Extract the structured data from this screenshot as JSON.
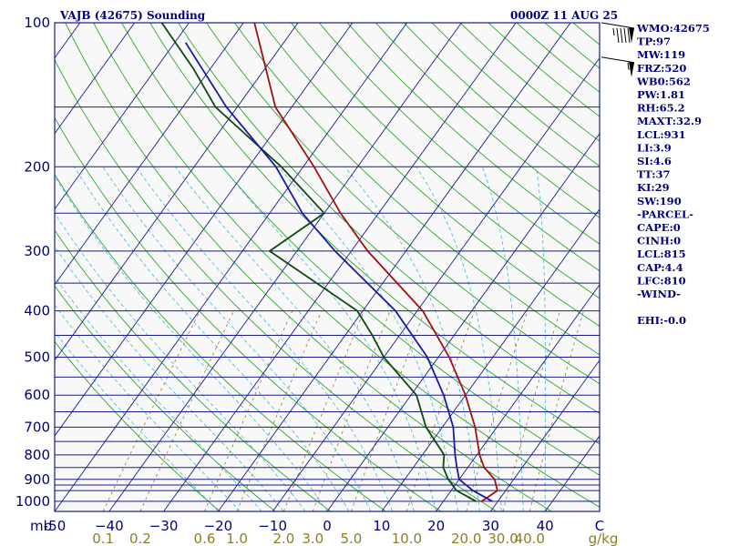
{
  "header": {
    "station": "VAJB (42675) Sounding",
    "time": "0000Z 11 AUG 25"
  },
  "colors": {
    "isobar": "#1a1a8c",
    "isotherm": "#1a1a8c",
    "dry_adiabat": "#2aa82a",
    "moist_adiabat": "#40b8d8",
    "mixing_ratio": "#8b7d2a",
    "temperature": "#a01010",
    "dewpoint": "#0d4a0d",
    "parcel": "#1a1aa8",
    "wind_barb": "#000000"
  },
  "indices": [
    "WMO:42675",
    "TP:97",
    "MW:119",
    "FRZ:520",
    "WB0:562",
    "PW:1.81",
    "RH:65.2",
    "MAXT:32.9",
    "LCL:931",
    "LI:3.9",
    "SI:4.6",
    "TT:37",
    "KI:29",
    "SW:190",
    "-PARCEL-",
    "CAPE:0",
    "CINH:0",
    "LCL:815",
    "CAP:4.4",
    "LFC:810",
    "-WIND-",
    "",
    "EHI:-0.0"
  ],
  "chart_data": {
    "type": "skew-t log-p sounding",
    "pressure_unit_label": "mb",
    "pressure_ticks": [
      100,
      200,
      300,
      400,
      500,
      600,
      700,
      800,
      900,
      1000
    ],
    "isobars": [
      100,
      150,
      200,
      250,
      300,
      350,
      400,
      450,
      500,
      550,
      600,
      650,
      700,
      750,
      800,
      850,
      900,
      925,
      950,
      1000
    ],
    "temperature_ticks": [
      -50,
      -40,
      -30,
      -20,
      -10,
      0,
      10,
      20,
      30,
      40
    ],
    "temperature_tick_labels": [
      "-50",
      "−40",
      "−30",
      "−20",
      "−10",
      "0",
      "10",
      "20",
      "30",
      "40"
    ],
    "temperature_axis_end_label": "C",
    "mixing_ratio_labels": [
      "0.1",
      "0.2",
      "0.6",
      "1.0",
      "2.0",
      "3.0",
      "5.0",
      "10.0",
      "20.0",
      "30.0",
      "40.0"
    ],
    "mixing_ratio_values": [
      0.1,
      0.2,
      0.6,
      1.0,
      2.0,
      3.0,
      5.0,
      10.0,
      20.0,
      30.0,
      40.0
    ],
    "mixing_ratio_unit": "g/kg",
    "pressure_range": [
      1050,
      100
    ],
    "temperature_range_at_base": [
      -50,
      50
    ],
    "series": [
      {
        "key": "temperature",
        "points": [
          [
            1000,
            27
          ],
          [
            950,
            28.5
          ],
          [
            900,
            26.5
          ],
          [
            850,
            23
          ],
          [
            800,
            20.5
          ],
          [
            700,
            16
          ],
          [
            600,
            10
          ],
          [
            500,
            2
          ],
          [
            400,
            -9
          ],
          [
            300,
            -27
          ],
          [
            250,
            -37
          ],
          [
            200,
            -48
          ],
          [
            150,
            -63
          ],
          [
            100,
            -78
          ]
        ]
      },
      {
        "key": "dewpoint",
        "points": [
          [
            1000,
            26
          ],
          [
            950,
            21
          ],
          [
            900,
            18
          ],
          [
            850,
            15.5
          ],
          [
            800,
            14
          ],
          [
            700,
            7
          ],
          [
            600,
            1
          ],
          [
            500,
            -10
          ],
          [
            450,
            -15
          ],
          [
            400,
            -21
          ],
          [
            300,
            -45
          ],
          [
            250,
            -40
          ],
          [
            200,
            -54
          ],
          [
            150,
            -74
          ],
          [
            125,
            -83
          ],
          [
            100,
            -95
          ]
        ]
      },
      {
        "key": "parcel",
        "points": [
          [
            1000,
            29
          ],
          [
            950,
            24
          ],
          [
            900,
            20
          ],
          [
            850,
            18
          ],
          [
            800,
            16
          ],
          [
            700,
            12
          ],
          [
            600,
            6
          ],
          [
            500,
            -2
          ],
          [
            400,
            -14
          ],
          [
            300,
            -33
          ],
          [
            250,
            -44
          ],
          [
            200,
            -55
          ],
          [
            150,
            -72
          ],
          [
            110,
            -88
          ]
        ]
      }
    ],
    "wind_barbs": [
      {
        "pressure": 100,
        "speed_kt": 95,
        "direction_deg": 75
      },
      {
        "pressure": 118,
        "speed_kt": 55,
        "direction_deg": 80
      }
    ]
  }
}
